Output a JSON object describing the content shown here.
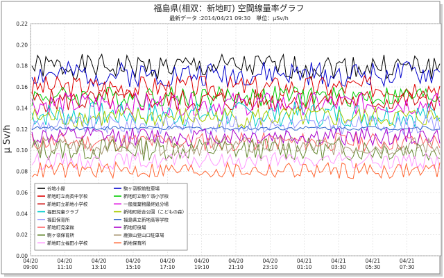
{
  "chart_data": {
    "type": "line",
    "title": "福島県(相双：新地町) 空間線量率グラフ",
    "subtitle": "最新データ :2014/04/21 09:30　単位：μSv/h",
    "ylabel": "μ Sv/h",
    "xlabel": "",
    "ylim": [
      0,
      0.22
    ],
    "yticks": [
      "0.00",
      "0.02",
      "0.04",
      "0.06",
      "0.08",
      "0.10",
      "0.12",
      "0.14",
      "0.16",
      "0.18",
      "0.20",
      "0.22"
    ],
    "xticks": [
      {
        "date": "04/20",
        "time": "09:00"
      },
      {
        "date": "04/20",
        "time": "11:10"
      },
      {
        "date": "04/20",
        "time": "13:10"
      },
      {
        "date": "04/20",
        "time": "15:10"
      },
      {
        "date": "04/20",
        "time": "17:10"
      },
      {
        "date": "04/20",
        "time": "19:10"
      },
      {
        "date": "04/20",
        "time": "21:10"
      },
      {
        "date": "04/20",
        "time": "23:10"
      },
      {
        "date": "04/21",
        "time": "01:10"
      },
      {
        "date": "04/21",
        "time": "03:30"
      },
      {
        "date": "04/21",
        "time": "05:30"
      },
      {
        "date": "04/21",
        "time": "07:30"
      }
    ],
    "grid": true,
    "legend_position": "bottom-left",
    "series": [
      {
        "name": "谷地小屋",
        "color": "#000000",
        "mean": 0.179,
        "amp": 0.012,
        "seed": 1
      },
      {
        "name": "駒ヶ嶺駅前駐車場",
        "color": "#0000cc",
        "mean": 0.172,
        "amp": 0.012,
        "seed": 2
      },
      {
        "name": "新地町立尚英中学校",
        "color": "#e00000",
        "mean": 0.16,
        "amp": 0.011,
        "seed": 3
      },
      {
        "name": "新地町立駒ケ嶺小学校",
        "color": "#00cc00",
        "mean": 0.151,
        "amp": 0.01,
        "seed": 4
      },
      {
        "name": "新地町立新地小学校",
        "color": "#cc0000",
        "mean": 0.147,
        "amp": 0.011,
        "seed": 5
      },
      {
        "name": "一般廃棄物最終処分場",
        "color": "#dd00dd",
        "mean": 0.144,
        "amp": 0.011,
        "seed": 6
      },
      {
        "name": "福田児童クラブ",
        "color": "#00cccc",
        "mean": 0.134,
        "amp": 0.012,
        "seed": 7
      },
      {
        "name": "新地町総合公園（こどもの森）",
        "color": "#aacc00",
        "mean": 0.131,
        "amp": 0.01,
        "seed": 8
      },
      {
        "name": "福田保育所",
        "color": "#9999ff",
        "mean": 0.124,
        "amp": 0.009,
        "seed": 9
      },
      {
        "name": "福島県立新地高等学校",
        "color": "#3366cc",
        "mean": 0.121,
        "amp": 0.002,
        "seed": 10
      },
      {
        "name": "新地町見楽館",
        "color": "#ff6666",
        "mean": 0.108,
        "amp": 0.009,
        "seed": 11
      },
      {
        "name": "新地町役場",
        "color": "#aa00cc",
        "mean": 0.113,
        "amp": 0.009,
        "seed": 12
      },
      {
        "name": "駒ヶ嶺保育所",
        "color": "#668833",
        "mean": 0.101,
        "amp": 0.011,
        "seed": 13
      },
      {
        "name": "鹿狼山登山口駐車場",
        "color": "#aa9977",
        "mean": 0.104,
        "amp": 0.009,
        "seed": 14
      },
      {
        "name": "新地町立福田小学校",
        "color": "#ff99ff",
        "mean": 0.09,
        "amp": 0.008,
        "seed": 15
      },
      {
        "name": "新地保育所",
        "color": "#ff6633",
        "mean": 0.081,
        "amp": 0.008,
        "seed": 16
      }
    ]
  }
}
